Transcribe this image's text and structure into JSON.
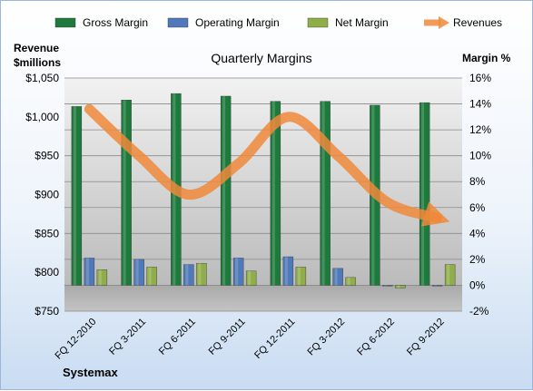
{
  "chart_data": {
    "type": "bar",
    "title": "Quarterly Margins",
    "left_axis_label": [
      "Revenue",
      "$millions"
    ],
    "right_axis_label": "Margin %",
    "footer_label": "Systemax",
    "categories": [
      "FQ 12-2010",
      "FQ 3-2011",
      "FQ 6-2011",
      "FQ 9-2011",
      "FQ 12-2011",
      "FQ 3-2012",
      "FQ 6-2012",
      "FQ 9-2012"
    ],
    "left_axis": {
      "min": 750,
      "max": 1050,
      "step": 50,
      "ticks": [
        "$750",
        "$800",
        "$850",
        "$900",
        "$950",
        "$1,000",
        "$1,050"
      ]
    },
    "right_axis": {
      "min": -2,
      "max": 16,
      "step": 2,
      "ticks": [
        "-2%",
        "0%",
        "2%",
        "4%",
        "6%",
        "8%",
        "10%",
        "12%",
        "14%",
        "16%"
      ]
    },
    "series": [
      {
        "name": "Gross Margin",
        "axis": "right",
        "kind": "bar",
        "color": "#1e7a3c",
        "values": [
          13.8,
          14.3,
          14.8,
          14.6,
          14.2,
          14.2,
          13.9,
          14.1
        ]
      },
      {
        "name": "Operating Margin",
        "axis": "right",
        "kind": "bar",
        "color": "#4f79b8",
        "values": [
          2.1,
          2.0,
          1.6,
          2.1,
          2.2,
          1.3,
          0.0,
          0.0
        ]
      },
      {
        "name": "Net Margin",
        "axis": "right",
        "kind": "bar",
        "color": "#8fae4a",
        "values": [
          1.2,
          1.4,
          1.7,
          1.1,
          1.4,
          0.6,
          -0.2,
          1.6
        ]
      },
      {
        "name": "Revenues",
        "axis": "left",
        "kind": "line",
        "color": "#f0883a",
        "values": [
          1010,
          950,
          900,
          940,
          1000,
          950,
          890,
          870
        ]
      }
    ],
    "grid": true,
    "legend_position": "top"
  }
}
